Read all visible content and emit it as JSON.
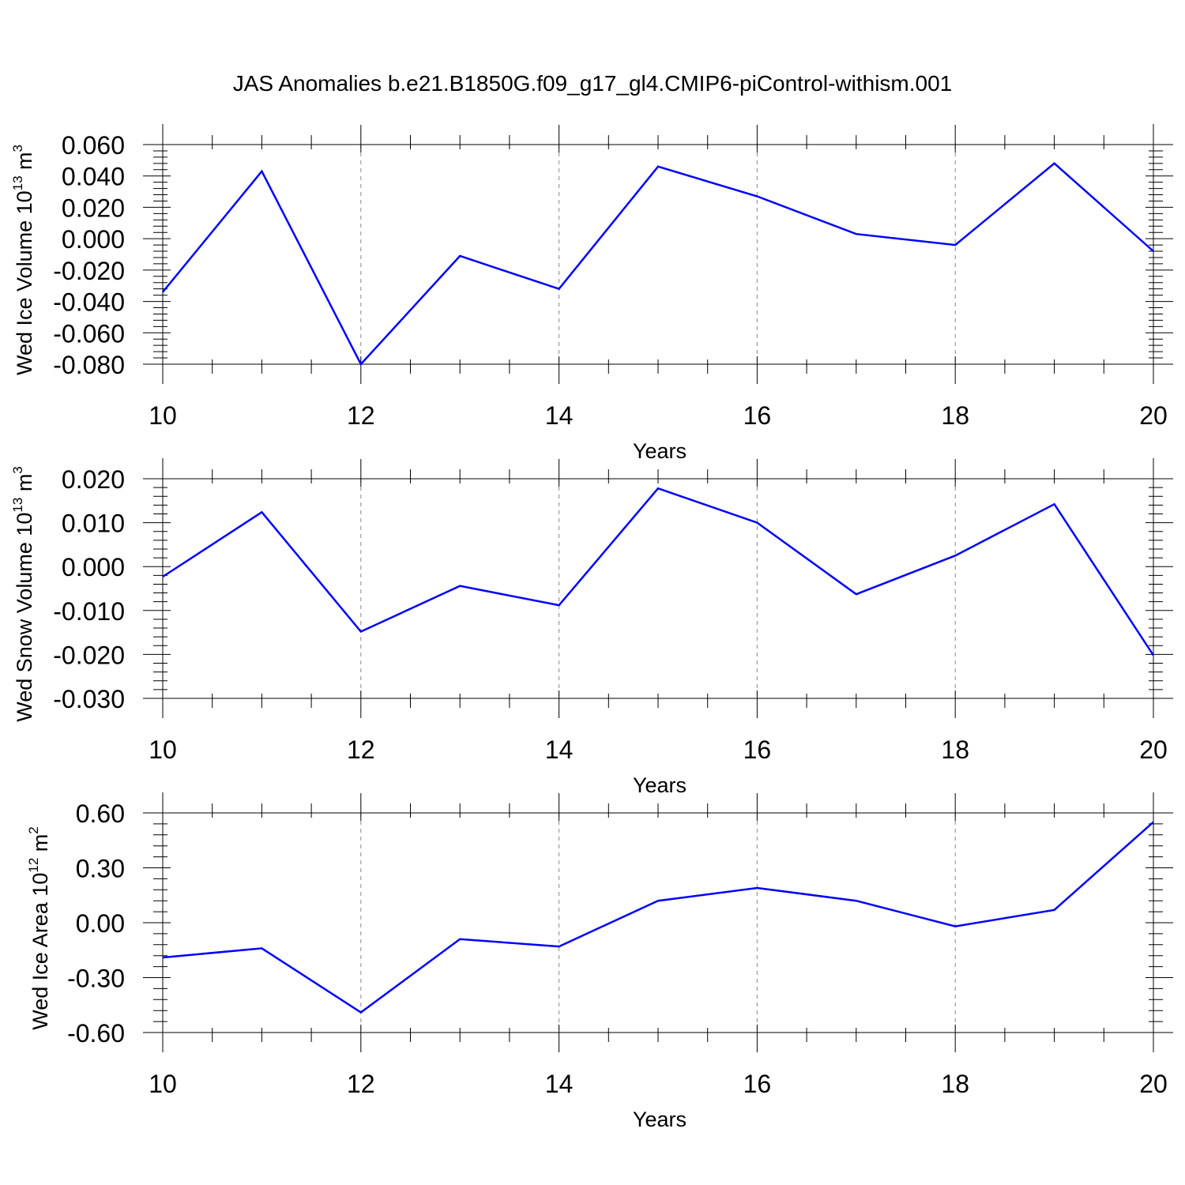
{
  "title": "JAS Anomalies b.e21.B1850G.f09_g17_gl4.CMIP6-piControl-withism.001",
  "chart_data": [
    {
      "type": "line",
      "ylabel": "Wed Ice Volume 10",
      "ylabel_sup": "13",
      "ylabel_unit": "m",
      "ylabel_unit_sup": "3",
      "xlabel": "Years",
      "x": [
        10,
        11,
        12,
        13,
        14,
        15,
        16,
        17,
        18,
        19,
        20
      ],
      "series": [
        {
          "values": [
            -0.034,
            0.043,
            -0.08,
            -0.011,
            -0.032,
            0.046,
            0.027,
            0.003,
            -0.004,
            0.048,
            -0.008
          ]
        }
      ],
      "xlim": [
        10,
        20
      ],
      "ylim": [
        -0.08,
        0.06
      ],
      "x_ticks": [
        10,
        12,
        14,
        16,
        18,
        20
      ],
      "y_ticks": [
        -0.08,
        -0.06,
        -0.04,
        -0.02,
        0.0,
        0.02,
        0.04,
        0.06
      ],
      "y_tick_labels": [
        "-0.080",
        "-0.060",
        "-0.040",
        "-0.020",
        "0.000",
        "0.020",
        "0.040",
        "0.060"
      ],
      "grid": "vertical dashed at major x ticks",
      "line_color": "#0000ff"
    },
    {
      "type": "line",
      "ylabel": "Wed Snow Volume 10",
      "ylabel_sup": "13",
      "ylabel_unit": "m",
      "ylabel_unit_sup": "3",
      "xlabel": "Years",
      "x": [
        10,
        11,
        12,
        13,
        14,
        15,
        16,
        17,
        18,
        19,
        20
      ],
      "series": [
        {
          "values": [
            -0.0023,
            0.0124,
            -0.0148,
            -0.0044,
            -0.0088,
            0.0178,
            0.01,
            -0.0063,
            0.0025,
            0.0142,
            -0.0202
          ]
        }
      ],
      "xlim": [
        10,
        20
      ],
      "ylim": [
        -0.03,
        0.02
      ],
      "x_ticks": [
        10,
        12,
        14,
        16,
        18,
        20
      ],
      "y_ticks": [
        -0.03,
        -0.02,
        -0.01,
        0.0,
        0.01,
        0.02
      ],
      "y_tick_labels": [
        "-0.030",
        "-0.020",
        "-0.010",
        "0.000",
        "0.010",
        "0.020"
      ],
      "grid": "vertical dashed at major x ticks",
      "line_color": "#0000ff"
    },
    {
      "type": "line",
      "ylabel": "Wed Ice Area 10",
      "ylabel_sup": "12",
      "ylabel_unit": "m",
      "ylabel_unit_sup": "2",
      "xlabel": "Years",
      "x": [
        10,
        11,
        12,
        13,
        14,
        15,
        16,
        17,
        18,
        19,
        20
      ],
      "series": [
        {
          "values": [
            -0.19,
            -0.14,
            -0.49,
            -0.09,
            -0.13,
            0.12,
            0.19,
            0.12,
            -0.02,
            0.07,
            0.55
          ]
        }
      ],
      "xlim": [
        10,
        20
      ],
      "ylim": [
        -0.6,
        0.6
      ],
      "x_ticks": [
        10,
        12,
        14,
        16,
        18,
        20
      ],
      "y_ticks": [
        -0.6,
        -0.3,
        0.0,
        0.3,
        0.6
      ],
      "y_tick_labels": [
        "-0.60",
        "-0.30",
        "0.00",
        "0.30",
        "0.60"
      ],
      "grid": "vertical dashed at major x ticks",
      "line_color": "#0000ff"
    }
  ]
}
